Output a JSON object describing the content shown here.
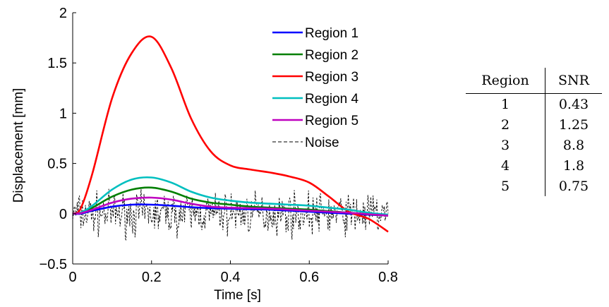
{
  "chart_data": {
    "type": "line",
    "xlabel": "Time [s]",
    "ylabel": "Displacement [mm]",
    "xlim": [
      0,
      0.8
    ],
    "ylim": [
      -0.5,
      2
    ],
    "xticks": [
      0,
      0.2,
      0.4,
      0.6,
      0.8
    ],
    "yticks": [
      -0.5,
      0,
      0.5,
      1,
      1.5,
      2
    ],
    "xtick_labels": [
      "0",
      "0.2",
      "0.4",
      "0.6",
      "0.8"
    ],
    "ytick_labels": [
      "−0.5",
      "0",
      "0.5",
      "1",
      "1.5",
      "2"
    ],
    "legend_position": "top-right",
    "grid": false,
    "x": [
      0,
      0.02,
      0.05,
      0.1,
      0.15,
      0.2,
      0.25,
      0.3,
      0.35,
      0.4,
      0.45,
      0.5,
      0.55,
      0.6,
      0.65,
      0.7,
      0.75,
      0.8
    ],
    "series": [
      {
        "name": "Region 1",
        "color": "#0000ff",
        "style": "solid",
        "values": [
          0,
          0.0,
          0.03,
          0.07,
          0.09,
          0.09,
          0.08,
          0.065,
          0.055,
          0.05,
          0.045,
          0.04,
          0.03,
          0.02,
          0.01,
          0.0,
          -0.01,
          -0.02
        ]
      },
      {
        "name": "Region 2",
        "color": "#007f00",
        "style": "solid",
        "values": [
          0,
          0.01,
          0.06,
          0.17,
          0.24,
          0.26,
          0.22,
          0.15,
          0.11,
          0.09,
          0.07,
          0.06,
          0.05,
          0.04,
          0.025,
          0.01,
          -0.005,
          -0.02
        ]
      },
      {
        "name": "Region 3",
        "color": "#ff0000",
        "style": "solid",
        "values": [
          0,
          0.05,
          0.4,
          1.15,
          1.6,
          1.76,
          1.45,
          0.95,
          0.62,
          0.48,
          0.44,
          0.41,
          0.37,
          0.31,
          0.17,
          0.02,
          -0.05,
          -0.18
        ]
      },
      {
        "name": "Region 4",
        "color": "#00bfbf",
        "style": "solid",
        "values": [
          0,
          0.01,
          0.08,
          0.24,
          0.34,
          0.36,
          0.31,
          0.22,
          0.16,
          0.13,
          0.11,
          0.1,
          0.09,
          0.08,
          0.06,
          0.04,
          0.01,
          -0.01
        ]
      },
      {
        "name": "Region 5",
        "color": "#bf00bf",
        "style": "solid",
        "values": [
          0,
          0.005,
          0.04,
          0.11,
          0.15,
          0.16,
          0.14,
          0.1,
          0.07,
          0.06,
          0.055,
          0.05,
          0.04,
          0.03,
          0.02,
          0.01,
          -0.005,
          -0.02
        ]
      },
      {
        "name": "Noise",
        "color": "#000000",
        "style": "dashed",
        "amplitude": 0.3,
        "generated": true
      }
    ]
  },
  "table": {
    "headers": [
      "Region",
      "SNR"
    ],
    "rows": [
      [
        "1",
        "0.43"
      ],
      [
        "2",
        "1.25"
      ],
      [
        "3",
        "8.8"
      ],
      [
        "4",
        "1.8"
      ],
      [
        "5",
        "0.75"
      ]
    ]
  }
}
